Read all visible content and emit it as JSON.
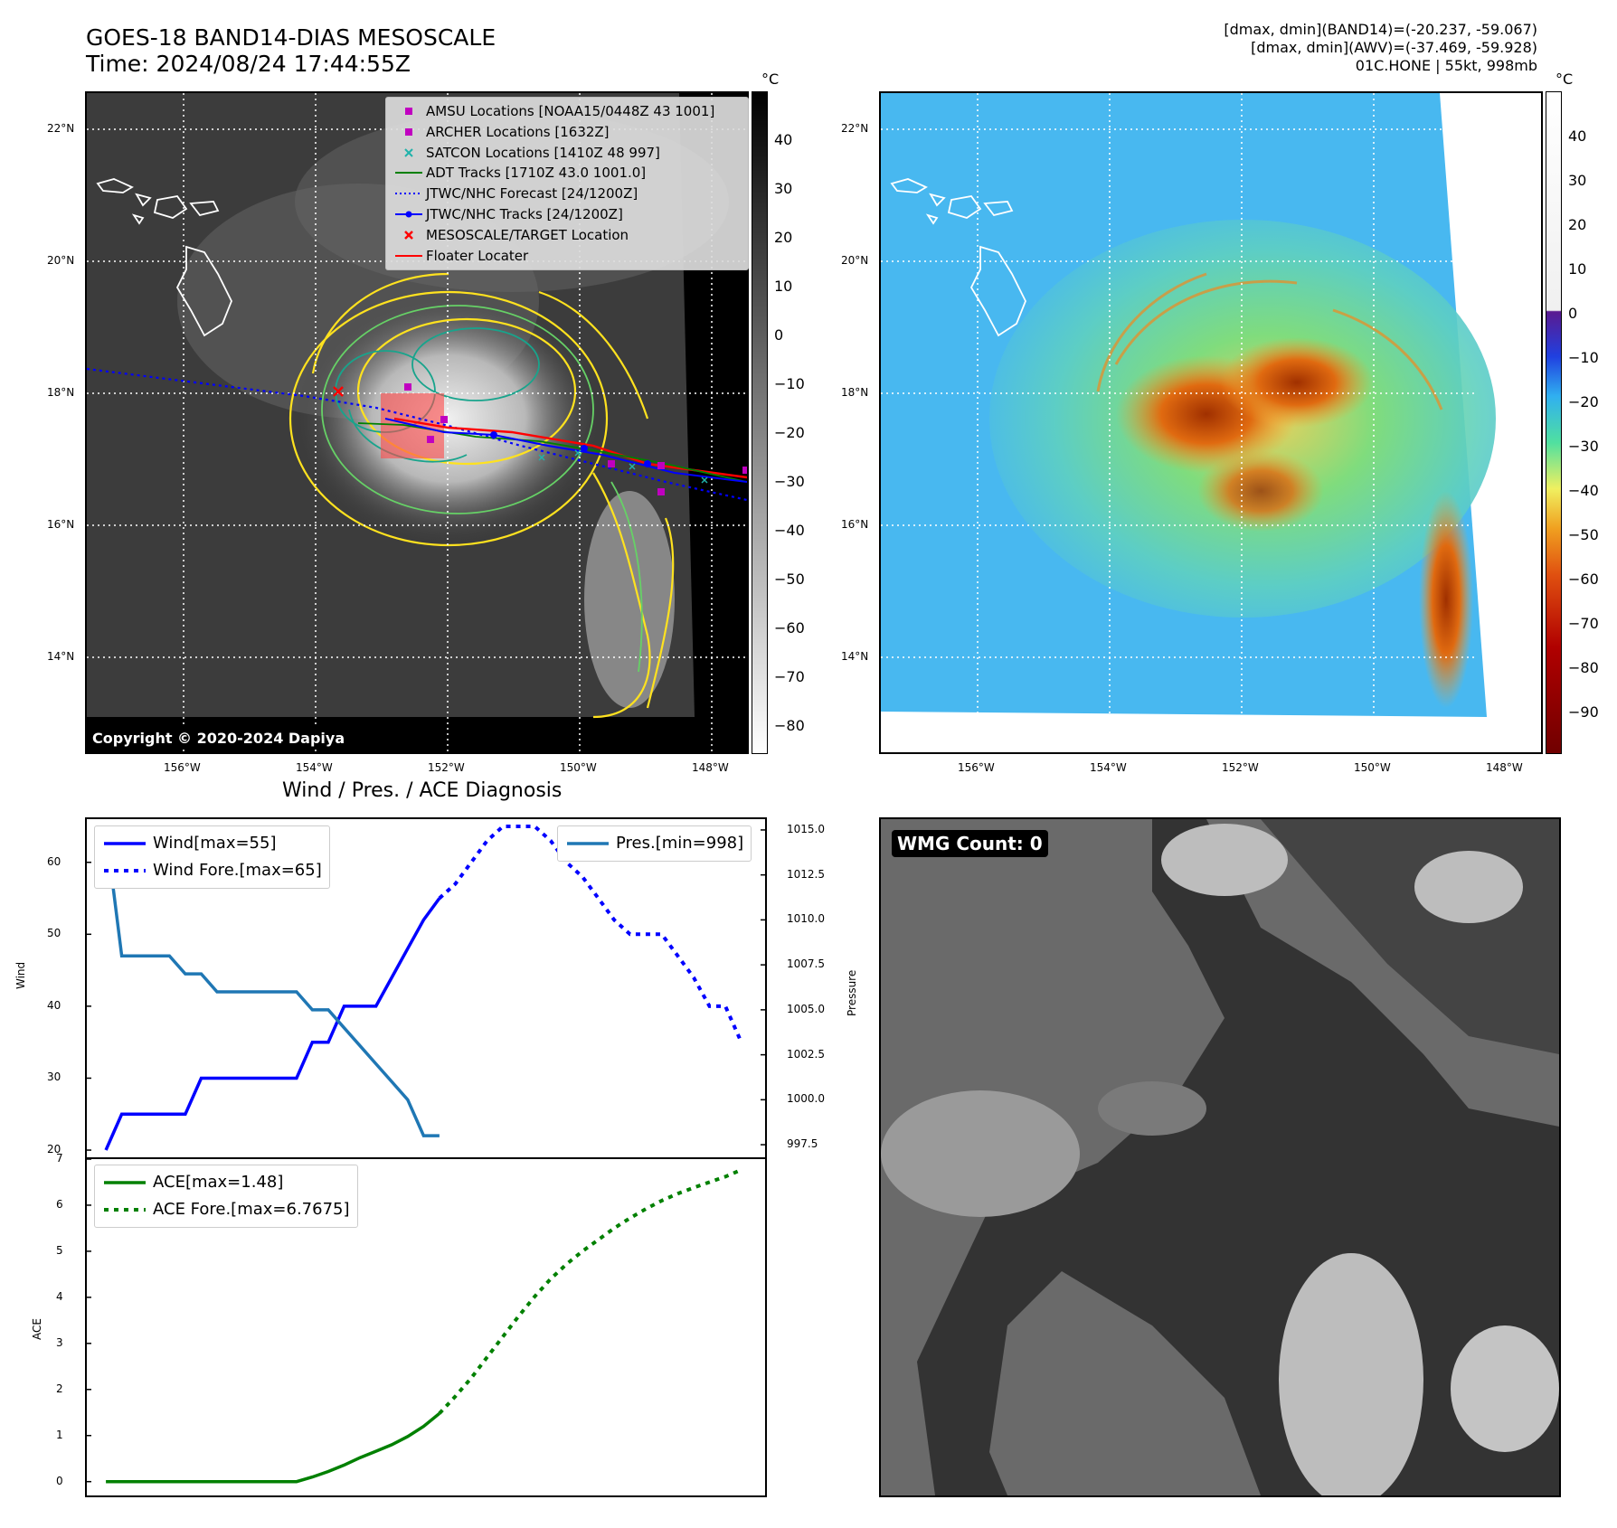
{
  "header": {
    "title_line1": "GOES-18 BAND14-DIAS MESOSCALE",
    "title_line2": "Time: 2024/08/24 17:44:55Z",
    "right_line1": "[dmax, dmin](BAND14)=(-20.237, -59.067)",
    "right_line2": "[dmax, dmin](AWV)=(-37.469, -59.928)",
    "right_line3": "01C.HONE | 55kt, 998mb"
  },
  "map": {
    "lat_labels": [
      "22°N",
      "20°N",
      "18°N",
      "16°N",
      "14°N"
    ],
    "lon_labels": [
      "156°W",
      "154°W",
      "152°W",
      "150°W",
      "148°W"
    ],
    "copyright": "Copyright © 2020-2024 Dapiya"
  },
  "colorbar_left": {
    "unit": "°C",
    "ticks": [
      "40",
      "30",
      "20",
      "10",
      "0",
      "−10",
      "−20",
      "−30",
      "−40",
      "−50",
      "−60",
      "−70",
      "−80"
    ]
  },
  "colorbar_right": {
    "unit": "°C",
    "ticks": [
      "40",
      "30",
      "20",
      "10",
      "0",
      "−10",
      "−20",
      "−30",
      "−40",
      "−50",
      "−60",
      "−70",
      "−80",
      "−90"
    ]
  },
  "map_legend": [
    {
      "label": "AMSU Locations [NOAA15/0448Z 43 1001]",
      "sym": "square",
      "color": "#c000c0"
    },
    {
      "label": "ARCHER Locations [1632Z]",
      "sym": "square",
      "color": "#c000c0"
    },
    {
      "label": "SATCON Locations [1410Z 48 997]",
      "sym": "x",
      "color": "#20b2aa"
    },
    {
      "label": "ADT Tracks [1710Z 43.0 1001.0]",
      "sym": "line",
      "color": "#008000"
    },
    {
      "label": "JTWC/NHC Forecast [24/1200Z]",
      "sym": "dotted",
      "color": "#0000ff"
    },
    {
      "label": "JTWC/NHC Tracks [24/1200Z]",
      "sym": "line-dot",
      "color": "#0000ff"
    },
    {
      "label": "MESOSCALE/TARGET Location",
      "sym": "x",
      "color": "#ff0000"
    },
    {
      "label": "Floater Locater",
      "sym": "line",
      "color": "#ff0000"
    }
  ],
  "diagnosis_title": "Wind / Pres. / ACE Diagnosis",
  "wmg_label": "WMG Count: 0",
  "chart_data": [
    {
      "type": "line",
      "title": "Wind / Pres. / ACE Diagnosis",
      "ylabel": "Wind",
      "ylabel_right": "Pressure",
      "ylim": [
        19,
        66
      ],
      "ylim_right": [
        996.8,
        1015.6
      ],
      "yticks": [
        20,
        30,
        40,
        50,
        60
      ],
      "yticks_right": [
        997.5,
        1000.0,
        1002.5,
        1005.0,
        1007.5,
        1010.0,
        1012.5,
        1015.0
      ],
      "x": [
        0,
        1,
        2,
        3,
        4,
        5,
        6,
        7,
        8,
        9,
        10,
        11,
        12,
        13,
        14,
        15,
        16,
        17,
        18,
        19,
        20,
        21,
        22,
        23,
        24,
        25,
        26,
        27,
        28,
        29,
        30,
        31,
        32,
        33,
        34,
        35,
        36,
        37,
        38,
        39,
        40
      ],
      "series": [
        {
          "name": "Wind[max=55]",
          "style": "solid",
          "color": "#0000ff",
          "x": [
            0,
            1,
            2,
            3,
            4,
            5,
            6,
            7,
            8,
            9,
            10,
            11,
            12,
            13,
            14,
            15,
            16,
            17,
            18,
            19,
            20,
            21
          ],
          "values": [
            20,
            25,
            25,
            25,
            25,
            25,
            30,
            30,
            30,
            30,
            30,
            30,
            30,
            35,
            35,
            40,
            40,
            40,
            44,
            48,
            52,
            55
          ]
        },
        {
          "name": "Wind Fore.[max=65]",
          "style": "dotted",
          "color": "#0000ff",
          "x": [
            21,
            22,
            23,
            24,
            25,
            26,
            27,
            28,
            29,
            30,
            31,
            32,
            33,
            34,
            35,
            36,
            37,
            38,
            39,
            40
          ],
          "values": [
            55,
            57,
            60,
            63,
            65,
            65,
            65,
            63,
            60,
            58,
            55,
            52,
            50,
            50,
            50,
            47,
            44,
            40,
            40,
            35
          ]
        },
        {
          "name": "Pres.[min=998]",
          "style": "solid",
          "color": "#1f77b4",
          "axis": "right",
          "x": [
            0,
            1,
            2,
            3,
            4,
            5,
            6,
            7,
            8,
            9,
            10,
            11,
            12,
            13,
            14,
            15,
            16,
            17,
            18,
            19,
            20,
            21
          ],
          "values": [
            1015,
            1008,
            1008,
            1008,
            1008,
            1007,
            1007,
            1006,
            1006,
            1006,
            1006,
            1006,
            1006,
            1005,
            1005,
            1004,
            1003,
            1002,
            1001,
            1000,
            998,
            998
          ]
        }
      ]
    },
    {
      "type": "line",
      "ylabel": "ACE",
      "ylim": [
        -0.3,
        7
      ],
      "yticks": [
        0,
        1,
        2,
        3,
        4,
        5,
        6,
        7
      ],
      "series": [
        {
          "name": "ACE[max=1.48]",
          "style": "solid",
          "color": "#008000",
          "x": [
            0,
            1,
            2,
            3,
            4,
            5,
            6,
            7,
            8,
            9,
            10,
            11,
            12,
            13,
            14,
            15,
            16,
            17,
            18,
            19,
            20,
            21
          ],
          "values": [
            0,
            0,
            0,
            0,
            0,
            0,
            0,
            0,
            0,
            0,
            0,
            0,
            0,
            0.1,
            0.22,
            0.36,
            0.52,
            0.66,
            0.8,
            0.98,
            1.2,
            1.48
          ]
        },
        {
          "name": "ACE Fore.[max=6.7675]",
          "style": "dotted",
          "color": "#008000",
          "x": [
            21,
            22,
            23,
            24,
            25,
            26,
            27,
            28,
            29,
            30,
            31,
            32,
            33,
            34,
            35,
            36,
            37,
            38,
            39,
            40
          ],
          "values": [
            1.48,
            1.85,
            2.25,
            2.7,
            3.15,
            3.6,
            4.02,
            4.4,
            4.72,
            5.0,
            5.25,
            5.5,
            5.72,
            5.92,
            6.1,
            6.25,
            6.38,
            6.5,
            6.62,
            6.7675
          ]
        }
      ]
    }
  ]
}
